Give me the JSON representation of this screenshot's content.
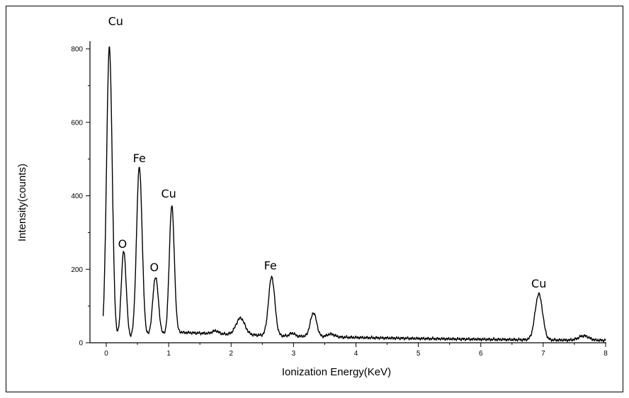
{
  "chart_data": {
    "type": "line",
    "title": "",
    "xlabel": "Ionization Energy(KeV)",
    "ylabel": "Intensity(counts)",
    "xlim": [
      -0.3,
      8.0
    ],
    "ylim": [
      0,
      850
    ],
    "xticks": [
      0,
      1,
      2,
      3,
      4,
      5,
      6,
      7,
      8
    ],
    "yticks": [
      0,
      200,
      400,
      600,
      800
    ],
    "grid": false,
    "legend": "none",
    "peaks": [
      {
        "x": 0.05,
        "height": 800,
        "width": 0.045
      },
      {
        "x": 0.28,
        "height": 240,
        "width": 0.04
      },
      {
        "x": 0.53,
        "height": 465,
        "width": 0.045
      },
      {
        "x": 0.79,
        "height": 160,
        "width": 0.045
      },
      {
        "x": 1.05,
        "height": 350,
        "width": 0.04
      },
      {
        "x": 1.75,
        "height": 8,
        "width": 0.05
      },
      {
        "x": 2.15,
        "height": 45,
        "width": 0.07
      },
      {
        "x": 2.65,
        "height": 160,
        "width": 0.05
      },
      {
        "x": 2.98,
        "height": 8,
        "width": 0.04
      },
      {
        "x": 3.32,
        "height": 65,
        "width": 0.05
      },
      {
        "x": 3.6,
        "height": 8,
        "width": 0.06
      },
      {
        "x": 6.93,
        "height": 125,
        "width": 0.06
      },
      {
        "x": 7.65,
        "height": 12,
        "width": 0.08
      }
    ],
    "annotations": [
      {
        "text": "Cu",
        "x": 0.15,
        "y": 865
      },
      {
        "text": "O",
        "x": 0.26,
        "y": 258
      },
      {
        "text": "Fe",
        "x": 0.53,
        "y": 492
      },
      {
        "text": "O",
        "x": 0.77,
        "y": 195
      },
      {
        "text": "Cu",
        "x": 1.0,
        "y": 395
      },
      {
        "text": "Fe",
        "x": 2.63,
        "y": 200
      },
      {
        "text": "Cu",
        "x": 6.93,
        "y": 150
      }
    ]
  }
}
